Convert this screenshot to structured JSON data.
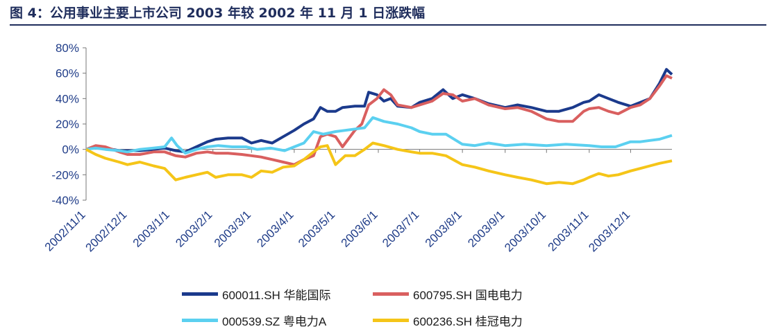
{
  "figure": {
    "title": "图 4：公用事业主要上市公司 2003 年较 2002 年 11 月 1 日涨跌幅"
  },
  "chart_data": {
    "type": "line",
    "ylim": [
      -40,
      80
    ],
    "yticks": [
      -40,
      -20,
      0,
      20,
      40,
      60,
      80
    ],
    "ytick_labels": [
      "-40%",
      "-20%",
      "0%",
      "20%",
      "40%",
      "60%",
      "80%"
    ],
    "x_tick_labels": [
      "2002/11/1",
      "2002/12/1",
      "2003/1/1",
      "2003/2/1",
      "2003/3/1",
      "2003/4/1",
      "2003/5/1",
      "2003/6/1",
      "2003/7/1",
      "2003/8/1",
      "2003/9/1",
      "2003/10/1",
      "2003/11/1",
      "2003/12/1"
    ],
    "x_tick_dates": [
      "2002-11-01",
      "2002-12-01",
      "2003-01-01",
      "2003-02-01",
      "2003-03-01",
      "2003-04-01",
      "2003-05-01",
      "2003-06-01",
      "2003-07-01",
      "2003-08-01",
      "2003-09-01",
      "2003-10-01",
      "2003-11-01",
      "2003-12-01"
    ],
    "x_range": [
      "2002-11-01",
      "2003-12-31"
    ],
    "xlabel": "",
    "ylabel": "",
    "grid": false,
    "legend_position": "bottom",
    "series": [
      {
        "name": "600011.SH 华能国际",
        "color": "#1b3a8c",
        "points": [
          [
            "2002-11-01",
            0
          ],
          [
            "2002-11-08",
            2
          ],
          [
            "2002-11-15",
            1
          ],
          [
            "2002-11-25",
            -1
          ],
          [
            "2002-12-01",
            -1
          ],
          [
            "2002-12-10",
            -1
          ],
          [
            "2002-12-20",
            0
          ],
          [
            "2002-12-28",
            1
          ],
          [
            "2003-01-05",
            -1
          ],
          [
            "2003-01-12",
            -2
          ],
          [
            "2003-01-20",
            2
          ],
          [
            "2003-01-28",
            6
          ],
          [
            "2003-02-03",
            8
          ],
          [
            "2003-02-12",
            9
          ],
          [
            "2003-02-22",
            9
          ],
          [
            "2003-03-01",
            5
          ],
          [
            "2003-03-08",
            7
          ],
          [
            "2003-03-16",
            5
          ],
          [
            "2003-03-24",
            10
          ],
          [
            "2003-04-01",
            15
          ],
          [
            "2003-04-08",
            20
          ],
          [
            "2003-04-15",
            24
          ],
          [
            "2003-04-20",
            33
          ],
          [
            "2003-04-25",
            30
          ],
          [
            "2003-05-01",
            30
          ],
          [
            "2003-05-06",
            33
          ],
          [
            "2003-05-15",
            34
          ],
          [
            "2003-05-22",
            34
          ],
          [
            "2003-05-25",
            45
          ],
          [
            "2003-05-31",
            43
          ],
          [
            "2003-06-05",
            38
          ],
          [
            "2003-06-10",
            40
          ],
          [
            "2003-06-15",
            34
          ],
          [
            "2003-06-25",
            33
          ],
          [
            "2003-07-01",
            37
          ],
          [
            "2003-07-10",
            40
          ],
          [
            "2003-07-18",
            47
          ],
          [
            "2003-07-25",
            40
          ],
          [
            "2003-08-01",
            43
          ],
          [
            "2003-08-10",
            40
          ],
          [
            "2003-08-20",
            36
          ],
          [
            "2003-09-01",
            33
          ],
          [
            "2003-09-10",
            35
          ],
          [
            "2003-09-20",
            33
          ],
          [
            "2003-10-01",
            30
          ],
          [
            "2003-10-10",
            30
          ],
          [
            "2003-10-20",
            33
          ],
          [
            "2003-10-28",
            37
          ],
          [
            "2003-11-01",
            38
          ],
          [
            "2003-11-08",
            43
          ],
          [
            "2003-11-15",
            40
          ],
          [
            "2003-11-22",
            37
          ],
          [
            "2003-12-01",
            34
          ],
          [
            "2003-12-08",
            37
          ],
          [
            "2003-12-15",
            40
          ],
          [
            "2003-12-22",
            52
          ],
          [
            "2003-12-27",
            63
          ],
          [
            "2003-12-31",
            59
          ]
        ]
      },
      {
        "name": "600795.SH 国电电力",
        "color": "#d95f5f",
        "points": [
          [
            "2002-11-01",
            0
          ],
          [
            "2002-11-08",
            3
          ],
          [
            "2002-11-15",
            2
          ],
          [
            "2002-11-25",
            -2
          ],
          [
            "2002-12-01",
            -4
          ],
          [
            "2002-12-10",
            -4
          ],
          [
            "2002-12-20",
            -2
          ],
          [
            "2002-12-28",
            -2
          ],
          [
            "2003-01-05",
            -5
          ],
          [
            "2003-01-12",
            -6
          ],
          [
            "2003-01-20",
            -3
          ],
          [
            "2003-01-28",
            -2
          ],
          [
            "2003-02-03",
            -3
          ],
          [
            "2003-02-12",
            -3
          ],
          [
            "2003-02-22",
            -4
          ],
          [
            "2003-03-01",
            -5
          ],
          [
            "2003-03-08",
            -6
          ],
          [
            "2003-03-16",
            -8
          ],
          [
            "2003-03-24",
            -10
          ],
          [
            "2003-04-01",
            -12
          ],
          [
            "2003-04-08",
            -8
          ],
          [
            "2003-04-15",
            -5
          ],
          [
            "2003-04-20",
            10
          ],
          [
            "2003-04-25",
            12
          ],
          [
            "2003-05-01",
            10
          ],
          [
            "2003-05-06",
            2
          ],
          [
            "2003-05-15",
            15
          ],
          [
            "2003-05-20",
            20
          ],
          [
            "2003-05-25",
            35
          ],
          [
            "2003-05-31",
            40
          ],
          [
            "2003-06-05",
            47
          ],
          [
            "2003-06-10",
            43
          ],
          [
            "2003-06-15",
            35
          ],
          [
            "2003-06-25",
            33
          ],
          [
            "2003-07-01",
            35
          ],
          [
            "2003-07-10",
            38
          ],
          [
            "2003-07-18",
            44
          ],
          [
            "2003-07-25",
            43
          ],
          [
            "2003-08-01",
            38
          ],
          [
            "2003-08-10",
            40
          ],
          [
            "2003-08-20",
            35
          ],
          [
            "2003-09-01",
            32
          ],
          [
            "2003-09-10",
            33
          ],
          [
            "2003-09-20",
            30
          ],
          [
            "2003-10-01",
            24
          ],
          [
            "2003-10-10",
            22
          ],
          [
            "2003-10-20",
            22
          ],
          [
            "2003-10-28",
            30
          ],
          [
            "2003-11-01",
            32
          ],
          [
            "2003-11-08",
            33
          ],
          [
            "2003-11-15",
            30
          ],
          [
            "2003-11-22",
            28
          ],
          [
            "2003-12-01",
            33
          ],
          [
            "2003-12-08",
            35
          ],
          [
            "2003-12-15",
            40
          ],
          [
            "2003-12-22",
            50
          ],
          [
            "2003-12-27",
            58
          ],
          [
            "2003-12-31",
            56
          ]
        ]
      },
      {
        "name": "000539.SZ 粤电力A",
        "color": "#5bd0f0",
        "points": [
          [
            "2002-11-01",
            0
          ],
          [
            "2002-11-08",
            1
          ],
          [
            "2002-11-15",
            0
          ],
          [
            "2002-11-25",
            -1
          ],
          [
            "2002-12-01",
            -2
          ],
          [
            "2002-12-10",
            0
          ],
          [
            "2002-12-20",
            1
          ],
          [
            "2002-12-28",
            2
          ],
          [
            "2003-01-02",
            9
          ],
          [
            "2003-01-06",
            3
          ],
          [
            "2003-01-12",
            -3
          ],
          [
            "2003-01-20",
            0
          ],
          [
            "2003-01-28",
            2
          ],
          [
            "2003-02-05",
            3
          ],
          [
            "2003-02-15",
            2
          ],
          [
            "2003-02-25",
            2
          ],
          [
            "2003-03-05",
            0
          ],
          [
            "2003-03-15",
            1
          ],
          [
            "2003-03-25",
            -1
          ],
          [
            "2003-04-01",
            2
          ],
          [
            "2003-04-08",
            5
          ],
          [
            "2003-04-15",
            14
          ],
          [
            "2003-04-22",
            12
          ],
          [
            "2003-05-01",
            14
          ],
          [
            "2003-05-08",
            15
          ],
          [
            "2003-05-15",
            16
          ],
          [
            "2003-05-22",
            17
          ],
          [
            "2003-05-28",
            25
          ],
          [
            "2003-06-05",
            22
          ],
          [
            "2003-06-15",
            20
          ],
          [
            "2003-06-25",
            17
          ],
          [
            "2003-07-01",
            14
          ],
          [
            "2003-07-10",
            12
          ],
          [
            "2003-07-20",
            12
          ],
          [
            "2003-08-01",
            4
          ],
          [
            "2003-08-10",
            3
          ],
          [
            "2003-08-20",
            5
          ],
          [
            "2003-09-01",
            3
          ],
          [
            "2003-09-15",
            4
          ],
          [
            "2003-10-01",
            3
          ],
          [
            "2003-10-15",
            4
          ],
          [
            "2003-11-01",
            3
          ],
          [
            "2003-11-10",
            2
          ],
          [
            "2003-11-20",
            2
          ],
          [
            "2003-12-01",
            6
          ],
          [
            "2003-12-08",
            6
          ],
          [
            "2003-12-15",
            7
          ],
          [
            "2003-12-22",
            8
          ],
          [
            "2003-12-31",
            11
          ]
        ]
      },
      {
        "name": "600236.SH 桂冠电力",
        "color": "#f5c518",
        "points": [
          [
            "2002-11-01",
            0
          ],
          [
            "2002-11-08",
            -4
          ],
          [
            "2002-11-15",
            -7
          ],
          [
            "2002-11-25",
            -10
          ],
          [
            "2002-12-01",
            -12
          ],
          [
            "2002-12-10",
            -10
          ],
          [
            "2002-12-20",
            -13
          ],
          [
            "2002-12-28",
            -15
          ],
          [
            "2003-01-05",
            -24
          ],
          [
            "2003-01-12",
            -22
          ],
          [
            "2003-01-20",
            -20
          ],
          [
            "2003-01-28",
            -18
          ],
          [
            "2003-02-03",
            -22
          ],
          [
            "2003-02-12",
            -20
          ],
          [
            "2003-02-22",
            -20
          ],
          [
            "2003-03-01",
            -22
          ],
          [
            "2003-03-08",
            -17
          ],
          [
            "2003-03-16",
            -18
          ],
          [
            "2003-03-24",
            -14
          ],
          [
            "2003-04-01",
            -13
          ],
          [
            "2003-04-08",
            -8
          ],
          [
            "2003-04-15",
            -2
          ],
          [
            "2003-04-20",
            2
          ],
          [
            "2003-04-25",
            3
          ],
          [
            "2003-05-01",
            -12
          ],
          [
            "2003-05-08",
            -5
          ],
          [
            "2003-05-15",
            -5
          ],
          [
            "2003-05-22",
            0
          ],
          [
            "2003-05-28",
            5
          ],
          [
            "2003-06-05",
            3
          ],
          [
            "2003-06-15",
            0
          ],
          [
            "2003-06-25",
            -2
          ],
          [
            "2003-07-01",
            -3
          ],
          [
            "2003-07-10",
            -3
          ],
          [
            "2003-07-20",
            -5
          ],
          [
            "2003-08-01",
            -12
          ],
          [
            "2003-08-10",
            -14
          ],
          [
            "2003-08-20",
            -17
          ],
          [
            "2003-09-01",
            -20
          ],
          [
            "2003-09-10",
            -22
          ],
          [
            "2003-09-20",
            -24
          ],
          [
            "2003-10-01",
            -27
          ],
          [
            "2003-10-10",
            -26
          ],
          [
            "2003-10-20",
            -27
          ],
          [
            "2003-10-28",
            -24
          ],
          [
            "2003-11-01",
            -22
          ],
          [
            "2003-11-08",
            -19
          ],
          [
            "2003-11-15",
            -21
          ],
          [
            "2003-11-22",
            -20
          ],
          [
            "2003-12-01",
            -17
          ],
          [
            "2003-12-08",
            -15
          ],
          [
            "2003-12-15",
            -13
          ],
          [
            "2003-12-22",
            -11
          ],
          [
            "2003-12-31",
            -9
          ]
        ]
      }
    ]
  }
}
